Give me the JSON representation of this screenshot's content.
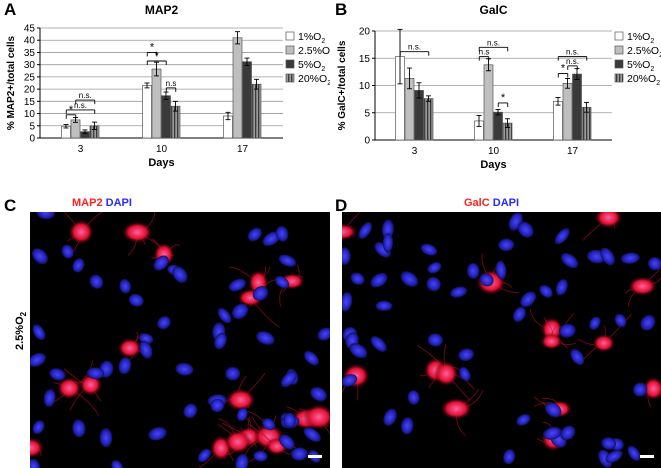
{
  "panels": {
    "A": "A",
    "B": "B",
    "C": "C",
    "D": "D"
  },
  "legend": {
    "entries": [
      {
        "label": "1%O2",
        "base": "1%O",
        "sub": "2",
        "color": "#ffffff"
      },
      {
        "label": "2.5%O2",
        "base": "2.5%O",
        "sub": "2",
        "color": "#bfbfbf"
      },
      {
        "label": "5%O2",
        "base": "5%O",
        "sub": "2",
        "color": "#3a3a3a"
      },
      {
        "label": "20%O2",
        "base": "20%O",
        "sub": "2",
        "color": "#7a7a7a",
        "pattern": "vertical-stripes"
      }
    ]
  },
  "chart_data": [
    {
      "type": "bar",
      "title": "MAP2",
      "xlabel": "Days",
      "ylabel": "% MAP2+/total cells",
      "ylim": [
        0,
        45
      ],
      "yticks": [
        0,
        5,
        10,
        15,
        20,
        25,
        30,
        35,
        40,
        45
      ],
      "categories": [
        "3",
        "10",
        "17"
      ],
      "grid": true,
      "legend_position": "right",
      "series": [
        {
          "name": "1%O2",
          "values": [
            4.8,
            21.5,
            9.0
          ],
          "errors": [
            0.7,
            1.0,
            1.5
          ]
        },
        {
          "name": "2.5%O2",
          "values": [
            7.4,
            28.2,
            41.0
          ],
          "errors": [
            1.0,
            2.8,
            2.5
          ]
        },
        {
          "name": "5%O2",
          "values": [
            2.6,
            17.3,
            31.2
          ],
          "errors": [
            0.7,
            1.5,
            1.5
          ]
        },
        {
          "name": "20%O2",
          "values": [
            5.0,
            13.0,
            22.0
          ],
          "errors": [
            1.5,
            2.0,
            2.0
          ]
        }
      ],
      "annotations": [
        "*",
        "n.s.",
        "n.s.",
        "*",
        "*",
        "n.s"
      ]
    },
    {
      "type": "bar",
      "title": "GalC",
      "xlabel": "Days",
      "ylabel": "% GalC+/total cells",
      "ylim": [
        0,
        20
      ],
      "yticks": [
        0,
        5,
        10,
        15,
        20
      ],
      "categories": [
        "3",
        "10",
        "17"
      ],
      "grid": true,
      "legend_position": "right",
      "series": [
        {
          "name": "1%O2",
          "values": [
            15.3,
            3.5,
            7.1
          ],
          "errors": [
            5.0,
            1.0,
            0.7
          ]
        },
        {
          "name": "2.5%O2",
          "values": [
            11.3,
            13.8,
            10.4
          ],
          "errors": [
            1.9,
            1.1,
            0.9
          ]
        },
        {
          "name": "5%O2",
          "values": [
            9.1,
            5.1,
            12.1
          ],
          "errors": [
            1.4,
            0.5,
            1.0
          ]
        },
        {
          "name": "20%O2",
          "values": [
            7.6,
            3.1,
            6.0
          ],
          "errors": [
            0.5,
            0.8,
            0.9
          ]
        }
      ],
      "annotations": [
        "n.s.",
        "n.s",
        "n.s.",
        "*",
        "*",
        "n.s.",
        "n.s."
      ]
    }
  ],
  "images": {
    "C": {
      "marker": "MAP2",
      "stain": "DAPI",
      "condition": "2.5%O",
      "condition_sub": "2"
    },
    "D": {
      "marker": "GalC",
      "stain": "DAPI"
    }
  },
  "colors": {
    "marker_red": "#ff2020",
    "dapi_blue": "#3a3aff",
    "grid": "#999999"
  }
}
